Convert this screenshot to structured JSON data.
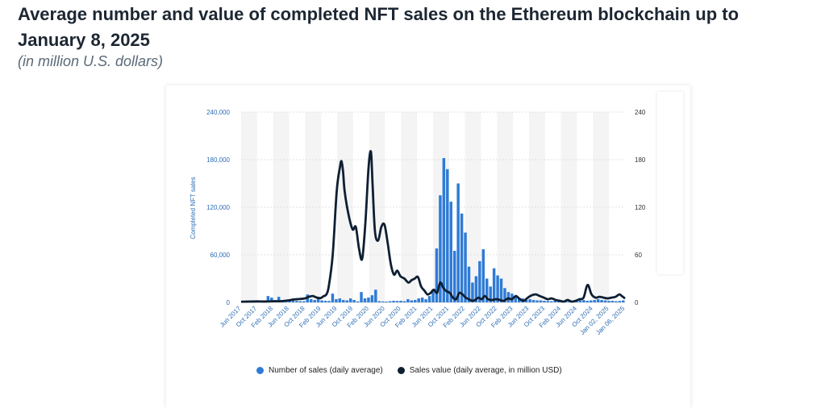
{
  "page": {
    "title": "Average number and value of completed NFT sales on the Ethereum blockchain up to January 8, 2025",
    "subtitle": "(in million U.S. dollars)"
  },
  "colors": {
    "bars": "#2e7bd6",
    "line": "#0f1f33",
    "grid": "#d8d8d8",
    "band": "#f4f4f4",
    "axis_text": "#2e6db5"
  },
  "chart_data": {
    "type": "bar+line",
    "ylabel": "Completed NFT sales",
    "ylim": [
      0,
      240000
    ],
    "y2lim": [
      0,
      240
    ],
    "y_ticks": [
      "0",
      "60,000",
      "120,000",
      "180,000",
      "240,000"
    ],
    "y2_ticks": [
      "0",
      "60",
      "120",
      "180",
      "240"
    ],
    "x_tick_labels": [
      "Jun 2017",
      "Oct 2017",
      "Feb 2018",
      "Jun 2018",
      "Oct 2018",
      "Feb 2019",
      "Jun 2019",
      "Oct 2019",
      "Feb 2020",
      "Jun 2020",
      "Oct 2020",
      "Feb 2021",
      "Jun 2021",
      "Oct 2021",
      "Feb 2022",
      "Jun 2022",
      "Oct 2022",
      "Feb 2023",
      "Jun 2023",
      "Oct 2023",
      "Feb 2024",
      "Jun 2024",
      "Oct 2024",
      "Jan 02, 2025",
      "Jan 06, 2025"
    ],
    "series": [
      {
        "name": "Number of sales (daily average)",
        "type": "bar",
        "values": [
          1200,
          900,
          1000,
          1100,
          1500,
          1800,
          2200,
          8000,
          6000,
          3000,
          7000,
          3000,
          2500,
          2000,
          2200,
          1800,
          1500,
          1500,
          10000,
          4000,
          3000,
          5000,
          2500,
          2000,
          1800,
          11000,
          4000,
          5000,
          3000,
          2500,
          5000,
          3000,
          1200,
          13000,
          5000,
          6000,
          9000,
          16000,
          1500,
          1200,
          1000,
          1500,
          2000,
          1800,
          2000,
          1500,
          4000,
          2500,
          3000,
          5000,
          6000,
          4000,
          8000,
          16000,
          68000,
          135000,
          182000,
          168000,
          127000,
          65000,
          150000,
          112000,
          88000,
          45000,
          25000,
          33000,
          52000,
          67000,
          30000,
          20000,
          43000,
          34000,
          30000,
          18000,
          13000,
          11000,
          8000,
          6000,
          5000,
          3000,
          4000,
          3000,
          2500,
          2500,
          2000,
          1800,
          1500,
          2000,
          2500,
          2000,
          1500,
          2500,
          2000,
          1800,
          2500,
          3000,
          2000,
          2500,
          3000,
          4000,
          3000,
          2500,
          2000,
          2000,
          1500,
          1800,
          2500
        ]
      },
      {
        "name": "Sales value (daily average, in million USD)",
        "type": "line",
        "points": [
          [
            0,
            0.8
          ],
          [
            5,
            0.9
          ],
          [
            10,
            1.0
          ],
          [
            20,
            1.2
          ],
          [
            30,
            1.1
          ],
          [
            40,
            1.4
          ],
          [
            50,
            1.5
          ],
          [
            55,
            2.0
          ],
          [
            60,
            2.5
          ],
          [
            65,
            3.5
          ],
          [
            70,
            4.0
          ],
          [
            80,
            5.0
          ],
          [
            85,
            7.0
          ],
          [
            90,
            8.0
          ],
          [
            95,
            6.0
          ],
          [
            100,
            5.5
          ],
          [
            103,
            7.5
          ],
          [
            107,
            10.0
          ],
          [
            110,
            20.0
          ],
          [
            115,
            60.0
          ],
          [
            120,
            140.0
          ],
          [
            124,
            170.0
          ],
          [
            126,
            178.0
          ],
          [
            128,
            165.0
          ],
          [
            130,
            140.0
          ],
          [
            135,
            110.0
          ],
          [
            140,
            92.0
          ],
          [
            144,
            95.0
          ],
          [
            148,
            68.0
          ],
          [
            152,
            55.0
          ],
          [
            156,
            100.0
          ],
          [
            160,
            170.0
          ],
          [
            163,
            190.0
          ],
          [
            165,
            150.0
          ],
          [
            168,
            90.0
          ],
          [
            172,
            78.0
          ],
          [
            176,
            95.0
          ],
          [
            180,
            98.0
          ],
          [
            184,
            75.0
          ],
          [
            188,
            48.0
          ],
          [
            192,
            35.0
          ],
          [
            196,
            40.0
          ],
          [
            200,
            33.0
          ],
          [
            205,
            30.0
          ],
          [
            210,
            25.0
          ],
          [
            214,
            28.0
          ],
          [
            218,
            30.0
          ],
          [
            222,
            32.0
          ],
          [
            226,
            20.0
          ],
          [
            230,
            15.0
          ],
          [
            234,
            10.0
          ],
          [
            238,
            12.0
          ],
          [
            242,
            16.0
          ],
          [
            246,
            12.0
          ],
          [
            250,
            25.0
          ],
          [
            254,
            18.0
          ],
          [
            258,
            14.0
          ],
          [
            262,
            12.0
          ],
          [
            266,
            6.0
          ],
          [
            270,
            4.0
          ],
          [
            274,
            12.0
          ],
          [
            278,
            10.0
          ],
          [
            282,
            6.0
          ],
          [
            286,
            4.0
          ],
          [
            290,
            2.0
          ],
          [
            294,
            3.0
          ],
          [
            298,
            6.0
          ],
          [
            302,
            4.0
          ],
          [
            306,
            8.0
          ],
          [
            310,
            4.0
          ],
          [
            315,
            3.0
          ],
          [
            320,
            4.0
          ],
          [
            325,
            3.0
          ],
          [
            330,
            2.0
          ],
          [
            335,
            5.0
          ],
          [
            340,
            4.0
          ],
          [
            345,
            8.0
          ],
          [
            350,
            4.0
          ],
          [
            355,
            2.0
          ],
          [
            360,
            6.0
          ],
          [
            365,
            9.0
          ],
          [
            370,
            10.0
          ],
          [
            375,
            8.0
          ],
          [
            380,
            6.0
          ],
          [
            385,
            4.0
          ],
          [
            390,
            5.0
          ],
          [
            395,
            3.0
          ],
          [
            400,
            2.0
          ],
          [
            405,
            1.0
          ],
          [
            410,
            3.0
          ],
          [
            415,
            1.0
          ],
          [
            420,
            2.0
          ],
          [
            425,
            4.0
          ],
          [
            430,
            6.0
          ],
          [
            435,
            22.0
          ],
          [
            440,
            10.0
          ],
          [
            445,
            6.0
          ],
          [
            450,
            7.0
          ],
          [
            455,
            6.0
          ],
          [
            460,
            5.0
          ],
          [
            465,
            6.0
          ],
          [
            470,
            7.0
          ],
          [
            475,
            10.0
          ],
          [
            478,
            8.0
          ],
          [
            482,
            5.0
          ]
        ],
        "x_range": [
          0,
          482
        ]
      }
    ]
  }
}
